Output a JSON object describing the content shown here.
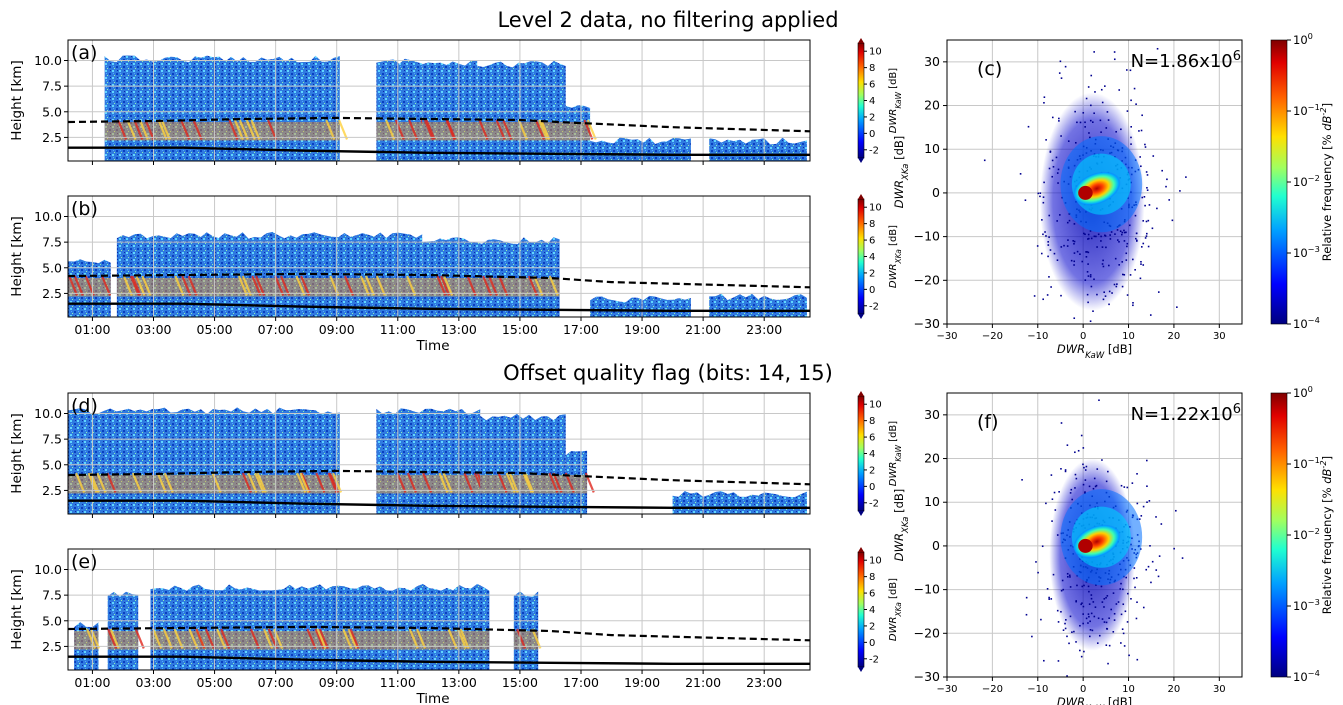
{
  "figure": {
    "title_top": "Level 2 data, no filtering applied",
    "title_bottom": "Offset quality flag (bits: 14, 15)"
  },
  "colors": {
    "ice": "#1e6bd6",
    "warm": "#ff9a1e",
    "melt": "#ffd23c",
    "hot": "#e0281e",
    "line": "#000000",
    "grid": "#c8c8c8"
  },
  "chart_data": [
    {
      "id": "a",
      "type": "heatmap",
      "panel_label": "(a)",
      "xlabel": "",
      "ylabel": "Height [km]",
      "xticks": [
        "01:00",
        "03:00",
        "05:00",
        "07:00",
        "09:00",
        "11:00",
        "13:00",
        "15:00",
        "17:00",
        "19:00",
        "21:00",
        "23:00"
      ],
      "yticks": [
        "2.5",
        "5.0",
        "7.5",
        "10.0"
      ],
      "xlim_hours": [
        0.2,
        24.5
      ],
      "ylim_km": [
        0.2,
        12.0
      ],
      "cbar_label": "DWR_KaW [dB]",
      "cbar_ticks": [
        "-2",
        "0",
        "2",
        "4",
        "6",
        "8",
        "10"
      ],
      "cbar_range": [
        -3,
        11
      ],
      "echo_blocks": [
        {
          "t": [
            1.4,
            9.1
          ],
          "top_km": 10.5
        },
        {
          "t": [
            10.3,
            11.8
          ],
          "top_km": 10.3
        },
        {
          "t": [
            11.8,
            13.6
          ],
          "top_km": 10.0
        },
        {
          "t": [
            13.6,
            16.5
          ],
          "top_km": 10.0
        },
        {
          "t": [
            16.5,
            17.3
          ],
          "top_km": 6.0
        },
        {
          "t": [
            17.3,
            20.6
          ],
          "top_km": 2.5
        },
        {
          "t": [
            21.2,
            24.4
          ],
          "top_km": 2.5
        }
      ],
      "melting_layer_km": [
        [
          0.2,
          4.0
        ],
        [
          3,
          4.1
        ],
        [
          6,
          4.3
        ],
        [
          9,
          4.4
        ],
        [
          12,
          4.3
        ],
        [
          15,
          4.2
        ],
        [
          17,
          3.9
        ],
        [
          20,
          3.5
        ],
        [
          24.5,
          3.1
        ]
      ],
      "ground_line_km": [
        [
          0.2,
          1.5
        ],
        [
          4,
          1.5
        ],
        [
          8,
          1.2
        ],
        [
          12,
          1.0
        ],
        [
          16,
          0.9
        ],
        [
          20,
          0.8
        ],
        [
          24.5,
          0.8
        ]
      ]
    },
    {
      "id": "b",
      "type": "heatmap",
      "panel_label": "(b)",
      "xlabel": "Time",
      "ylabel": "Height [km]",
      "xticks": [
        "01:00",
        "03:00",
        "05:00",
        "07:00",
        "09:00",
        "11:00",
        "13:00",
        "15:00",
        "17:00",
        "19:00",
        "21:00",
        "23:00"
      ],
      "yticks": [
        "2.5",
        "5.0",
        "7.5",
        "10.0"
      ],
      "xlim_hours": [
        0.2,
        24.5
      ],
      "ylim_km": [
        0.2,
        12.0
      ],
      "cbar_label": "DWR_XKa [dB]",
      "cbar_ticks": [
        "-2",
        "0",
        "2",
        "4",
        "6",
        "8",
        "10"
      ],
      "cbar_range": [
        -3,
        11
      ],
      "echo_blocks": [
        {
          "t": [
            0.2,
            1.6
          ],
          "top_km": 6.0
        },
        {
          "t": [
            1.8,
            11.8
          ],
          "top_km": 8.5
        },
        {
          "t": [
            11.8,
            16.3
          ],
          "top_km": 8.0
        },
        {
          "t": [
            17.3,
            20.6
          ],
          "top_km": 2.3
        },
        {
          "t": [
            21.2,
            24.4
          ],
          "top_km": 2.5
        }
      ],
      "melting_layer_km": [
        [
          0.2,
          4.2
        ],
        [
          4,
          4.3
        ],
        [
          8,
          4.4
        ],
        [
          12,
          4.3
        ],
        [
          16,
          4.0
        ],
        [
          18,
          3.6
        ],
        [
          24.5,
          3.1
        ]
      ],
      "ground_line_km": [
        [
          0.2,
          1.5
        ],
        [
          4,
          1.5
        ],
        [
          8,
          1.2
        ],
        [
          12,
          1.0
        ],
        [
          16,
          0.9
        ],
        [
          20,
          0.8
        ],
        [
          24.5,
          0.8
        ]
      ]
    },
    {
      "id": "d",
      "type": "heatmap",
      "panel_label": "(d)",
      "xlabel": "",
      "ylabel": "Height [km]",
      "xticks": [
        "01:00",
        "03:00",
        "05:00",
        "07:00",
        "09:00",
        "11:00",
        "13:00",
        "15:00",
        "17:00",
        "19:00",
        "21:00",
        "23:00"
      ],
      "yticks": [
        "2.5",
        "5.0",
        "7.5",
        "10.0"
      ],
      "xlim_hours": [
        0.2,
        24.5
      ],
      "ylim_km": [
        0.2,
        12.0
      ],
      "cbar_label": "DWR_KaW [dB]",
      "cbar_ticks": [
        "-2",
        "0",
        "2",
        "4",
        "6",
        "8",
        "10"
      ],
      "cbar_range": [
        -3,
        11
      ],
      "echo_blocks": [
        {
          "t": [
            0.2,
            9.1
          ],
          "top_km": 10.6
        },
        {
          "t": [
            10.3,
            13.7
          ],
          "top_km": 10.5
        },
        {
          "t": [
            13.7,
            16.5
          ],
          "top_km": 10.0
        },
        {
          "t": [
            16.5,
            17.2
          ],
          "top_km": 6.5
        },
        {
          "t": [
            20.0,
            24.4
          ],
          "top_km": 2.5
        }
      ],
      "melting_layer_km": [
        [
          0.2,
          4.0
        ],
        [
          3,
          4.1
        ],
        [
          6,
          4.3
        ],
        [
          9,
          4.4
        ],
        [
          12,
          4.3
        ],
        [
          15,
          4.2
        ],
        [
          17,
          3.9
        ],
        [
          20,
          3.5
        ],
        [
          24.5,
          3.1
        ]
      ],
      "ground_line_km": [
        [
          0.2,
          1.5
        ],
        [
          4,
          1.5
        ],
        [
          8,
          1.2
        ],
        [
          12,
          1.0
        ],
        [
          16,
          0.9
        ],
        [
          20,
          0.8
        ],
        [
          24.5,
          0.8
        ]
      ]
    },
    {
      "id": "e",
      "type": "heatmap",
      "panel_label": "(e)",
      "xlabel": "Time",
      "ylabel": "Height [km]",
      "xticks": [
        "01:00",
        "03:00",
        "05:00",
        "07:00",
        "09:00",
        "11:00",
        "13:00",
        "15:00",
        "17:00",
        "19:00",
        "21:00",
        "23:00"
      ],
      "yticks": [
        "2.5",
        "5.0",
        "7.5",
        "10.0"
      ],
      "xlim_hours": [
        0.2,
        24.5
      ],
      "ylim_km": [
        0.2,
        12.0
      ],
      "cbar_label": "DWR_XKa [dB]",
      "cbar_ticks": [
        "-2",
        "0",
        "2",
        "4",
        "6",
        "8",
        "10"
      ],
      "cbar_range": [
        -3,
        11
      ],
      "echo_blocks": [
        {
          "t": [
            0.4,
            1.2
          ],
          "top_km": 5.0
        },
        {
          "t": [
            1.5,
            2.5
          ],
          "top_km": 8.0
        },
        {
          "t": [
            2.9,
            14.0
          ],
          "top_km": 8.6
        },
        {
          "t": [
            14.8,
            15.6
          ],
          "top_km": 8.0
        }
      ],
      "melting_layer_km": [
        [
          0.2,
          4.2
        ],
        [
          4,
          4.3
        ],
        [
          8,
          4.4
        ],
        [
          12,
          4.3
        ],
        [
          16,
          4.0
        ],
        [
          18,
          3.6
        ],
        [
          24.5,
          3.1
        ]
      ],
      "ground_line_km": [
        [
          0.2,
          1.5
        ],
        [
          4,
          1.5
        ],
        [
          8,
          1.2
        ],
        [
          12,
          1.0
        ],
        [
          16,
          0.9
        ],
        [
          20,
          0.8
        ],
        [
          24.5,
          0.8
        ]
      ]
    },
    {
      "id": "c",
      "type": "scatter",
      "panel_label": "(c)",
      "annotation": "N=1.86x10^6",
      "xlabel": "DWR_KaW [dB]",
      "ylabel": "DWR_XKa [dB]",
      "xlim": [
        -30,
        35
      ],
      "ylim": [
        -30,
        35
      ],
      "xticks": [
        -30,
        -20,
        -10,
        0,
        10,
        20,
        30
      ],
      "yticks": [
        -30,
        -20,
        -10,
        0,
        10,
        20,
        30
      ],
      "cbar_label": "Relative frequency [% dB^-2]",
      "cbar_ticks": [
        "10^0",
        "10^-1",
        "10^-2",
        "10^-3",
        "10^-4"
      ],
      "density_center": [
        1,
        0
      ],
      "spread": [
        11,
        25
      ]
    },
    {
      "id": "f",
      "type": "scatter",
      "panel_label": "(f)",
      "annotation": "N=1.22x10^6",
      "xlabel": "DWR_KaW [dB]",
      "ylabel": "DWR_XKa [dB]",
      "xlim": [
        -30,
        35
      ],
      "ylim": [
        -30,
        35
      ],
      "xticks": [
        -30,
        -20,
        -10,
        0,
        10,
        20,
        30
      ],
      "yticks": [
        -30,
        -20,
        -10,
        0,
        10,
        20,
        30
      ],
      "cbar_label": "Relative frequency [% dB^-2]",
      "cbar_ticks": [
        "10^0",
        "10^-1",
        "10^-2",
        "10^-3",
        "10^-4"
      ],
      "density_center": [
        1,
        0
      ],
      "spread": [
        9,
        22
      ]
    }
  ]
}
